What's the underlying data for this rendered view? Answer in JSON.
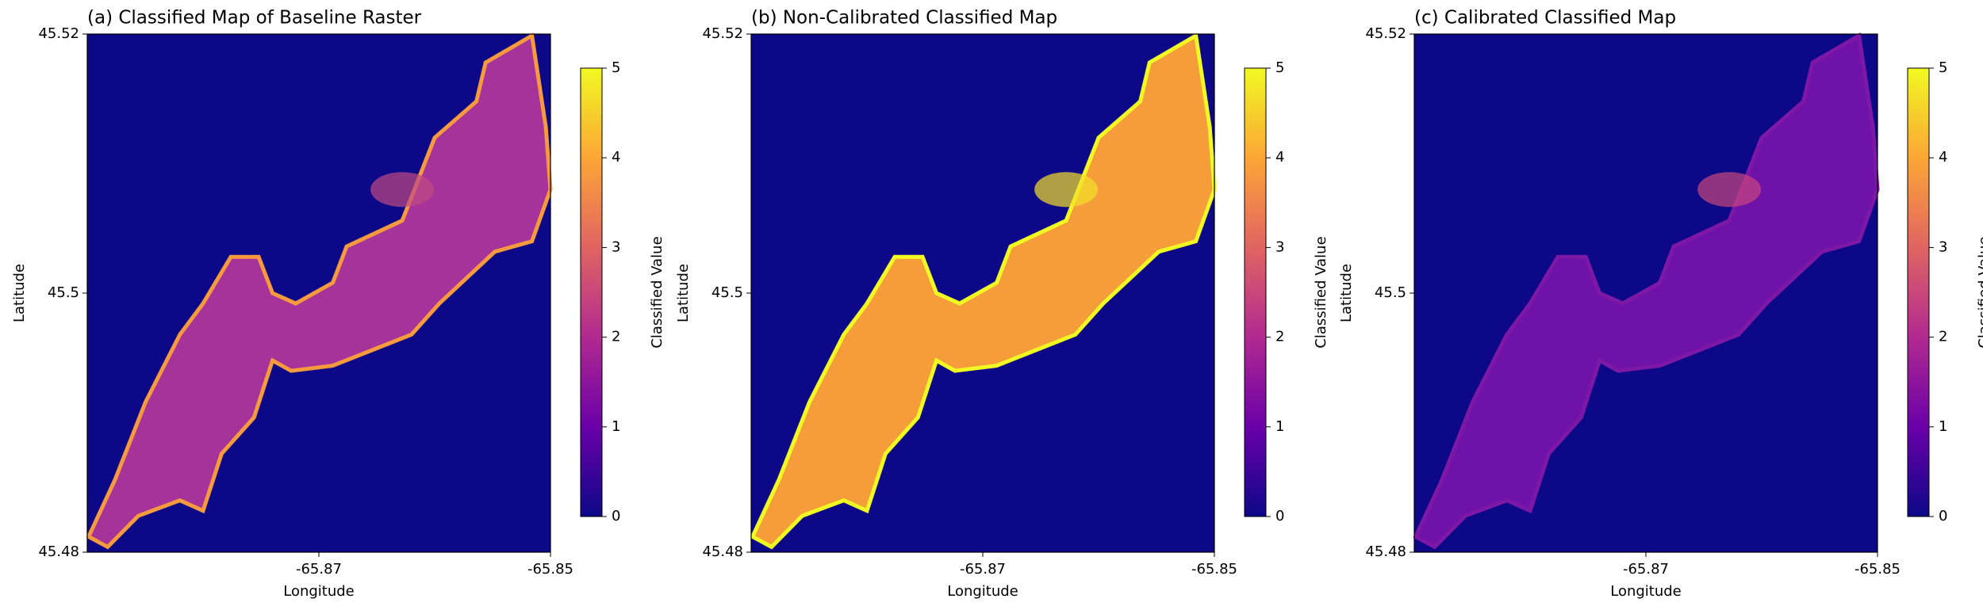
{
  "chart_data": [
    {
      "type": "raster",
      "title": "(a) Classified Map of Baseline Raster",
      "xlabel": "Longitude",
      "ylabel": "Latitude",
      "xlim": [
        -65.89,
        -65.85
      ],
      "xticks": [
        -65.87,
        -65.85
      ],
      "ylim": [
        45.48,
        45.52
      ],
      "yticks": [
        45.48,
        45.5,
        45.52
      ],
      "colorbar": {
        "label": "Classified Value",
        "lim": [
          0,
          5
        ],
        "ticks": [
          0,
          1,
          2,
          3,
          4,
          5
        ]
      },
      "colormap": [
        "#0d0887",
        "#6a00a8",
        "#b12a90",
        "#e16462",
        "#fca636",
        "#f0f921"
      ]
    },
    {
      "type": "raster",
      "title": "(b) Non-Calibrated Classified Map",
      "xlabel": "Longitude",
      "ylabel": "Latitude",
      "xlim": [
        -65.89,
        -65.85
      ],
      "xticks": [
        -65.87,
        -65.85
      ],
      "ylim": [
        45.48,
        45.52
      ],
      "yticks": [
        45.48,
        45.5,
        45.52
      ],
      "colorbar": {
        "label": "Classified Value",
        "lim": [
          0,
          5
        ],
        "ticks": [
          0,
          1,
          2,
          3,
          4,
          5
        ]
      },
      "colormap": [
        "#0d0887",
        "#6a00a8",
        "#b12a90",
        "#e16462",
        "#fca636",
        "#f0f921"
      ]
    },
    {
      "type": "raster",
      "title": "(c) Calibrated Classified Map",
      "xlabel": "Longitude",
      "ylabel": "Latitude",
      "xlim": [
        -65.89,
        -65.85
      ],
      "xticks": [
        -65.87,
        -65.85
      ],
      "ylim": [
        45.48,
        45.52
      ],
      "yticks": [
        45.48,
        45.5,
        45.52
      ],
      "colorbar": {
        "label": "Classified Value",
        "lim": [
          0,
          5
        ],
        "ticks": [
          0,
          1,
          2,
          3,
          4,
          5
        ]
      },
      "colormap": [
        "#0d0887",
        "#6a00a8",
        "#b12a90",
        "#e16462",
        "#fca636",
        "#f0f921"
      ]
    }
  ]
}
